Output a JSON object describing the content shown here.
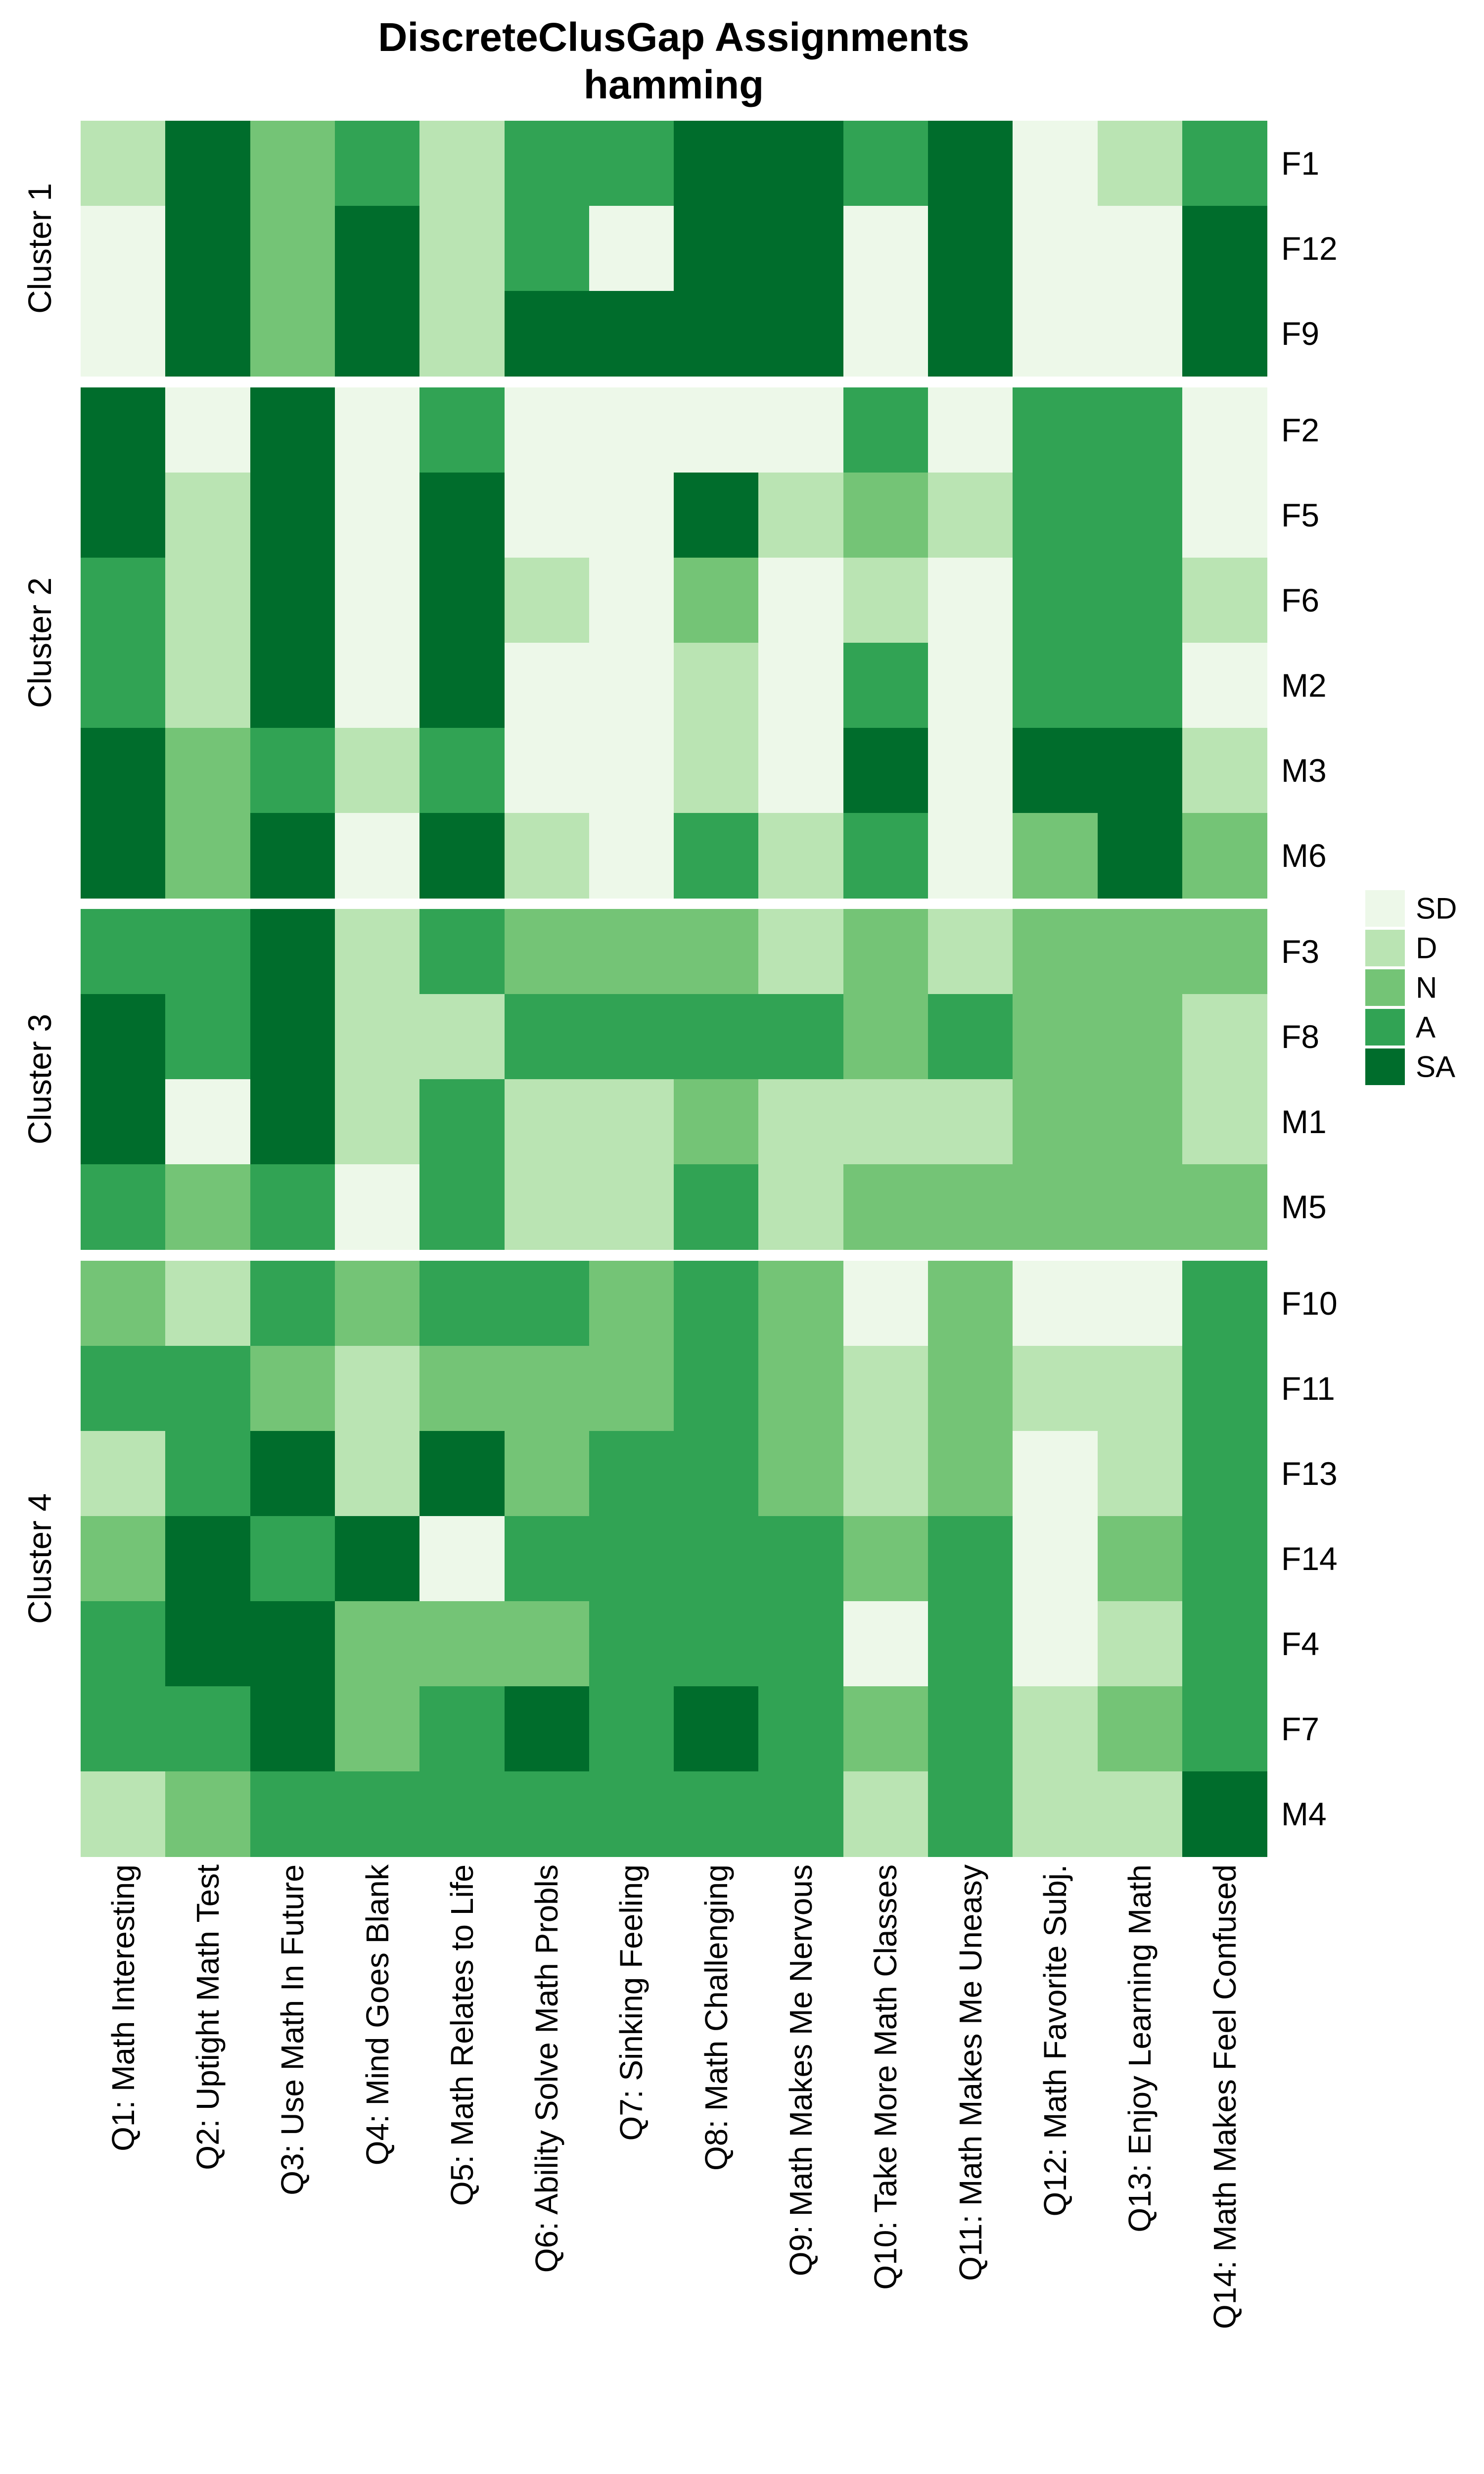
{
  "chart_data": {
    "type": "heatmap",
    "title": "DiscreteClusGap Assignments",
    "subtitle": "hamming",
    "value_scale": [
      "SD",
      "D",
      "N",
      "A",
      "SA"
    ],
    "legend": {
      "position": "right",
      "entries": [
        {
          "label": "SD",
          "color": "#edf8e9"
        },
        {
          "label": "D",
          "color": "#bae4b3"
        },
        {
          "label": "N",
          "color": "#74c476"
        },
        {
          "label": "A",
          "color": "#31a354"
        },
        {
          "label": "SA",
          "color": "#006d2c"
        }
      ]
    },
    "x_labels": [
      "Q1: Math Interesting",
      "Q2: Uptight Math Test",
      "Q3: Use Math In Future",
      "Q4: Mind Goes Blank",
      "Q5: Math Relates to Life",
      "Q6: Ability Solve Math Probls",
      "Q7: Sinking Feeling",
      "Q8: Math Challenging",
      "Q9: Math Makes Me Nervous",
      "Q10: Take More Math Classes",
      "Q11: Math Makes Me Uneasy",
      "Q12: Math Favorite Subj.",
      "Q13: Enjoy Learning Math",
      "Q14: Math Makes Feel Confused"
    ],
    "clusters": [
      {
        "name": "Cluster 1",
        "rows": [
          {
            "label": "F1",
            "values": [
              "D",
              "SA",
              "N",
              "A",
              "D",
              "A",
              "A",
              "SA",
              "SA",
              "A",
              "SA",
              "SD",
              "D",
              "A"
            ]
          },
          {
            "label": "F12",
            "values": [
              "SD",
              "SA",
              "N",
              "SA",
              "D",
              "A",
              "SD",
              "SA",
              "SA",
              "SD",
              "SA",
              "SD",
              "SD",
              "SA"
            ]
          },
          {
            "label": "F9",
            "values": [
              "SD",
              "SA",
              "N",
              "SA",
              "D",
              "SA",
              "SA",
              "SA",
              "SA",
              "SD",
              "SA",
              "SD",
              "SD",
              "SA"
            ]
          }
        ]
      },
      {
        "name": "Cluster 2",
        "rows": [
          {
            "label": "F2",
            "values": [
              "SA",
              "SD",
              "SA",
              "SD",
              "A",
              "SD",
              "SD",
              "SD",
              "SD",
              "A",
              "SD",
              "A",
              "A",
              "SD"
            ]
          },
          {
            "label": "F5",
            "values": [
              "SA",
              "D",
              "SA",
              "SD",
              "SA",
              "SD",
              "SD",
              "SA",
              "D",
              "N",
              "D",
              "A",
              "A",
              "SD"
            ]
          },
          {
            "label": "F6",
            "values": [
              "A",
              "D",
              "SA",
              "SD",
              "SA",
              "D",
              "SD",
              "N",
              "SD",
              "D",
              "SD",
              "A",
              "A",
              "D"
            ]
          },
          {
            "label": "M2",
            "values": [
              "A",
              "D",
              "SA",
              "SD",
              "SA",
              "SD",
              "SD",
              "D",
              "SD",
              "A",
              "SD",
              "A",
              "A",
              "SD"
            ]
          },
          {
            "label": "M3",
            "values": [
              "SA",
              "N",
              "A",
              "D",
              "A",
              "SD",
              "SD",
              "D",
              "SD",
              "SA",
              "SD",
              "SA",
              "SA",
              "D"
            ]
          },
          {
            "label": "M6",
            "values": [
              "SA",
              "N",
              "SA",
              "SD",
              "SA",
              "D",
              "SD",
              "A",
              "D",
              "A",
              "SD",
              "N",
              "SA",
              "N"
            ]
          }
        ]
      },
      {
        "name": "Cluster 3",
        "rows": [
          {
            "label": "F3",
            "values": [
              "A",
              "A",
              "SA",
              "D",
              "A",
              "N",
              "N",
              "N",
              "D",
              "N",
              "D",
              "N",
              "N",
              "N"
            ]
          },
          {
            "label": "F8",
            "values": [
              "SA",
              "A",
              "SA",
              "D",
              "D",
              "A",
              "A",
              "A",
              "A",
              "N",
              "A",
              "N",
              "N",
              "D"
            ]
          },
          {
            "label": "M1",
            "values": [
              "SA",
              "SD",
              "SA",
              "D",
              "A",
              "D",
              "D",
              "N",
              "D",
              "D",
              "D",
              "N",
              "N",
              "D"
            ]
          },
          {
            "label": "M5",
            "values": [
              "A",
              "N",
              "A",
              "SD",
              "A",
              "D",
              "D",
              "A",
              "D",
              "N",
              "N",
              "N",
              "N",
              "N"
            ]
          }
        ]
      },
      {
        "name": "Cluster 4",
        "rows": [
          {
            "label": "F10",
            "values": [
              "N",
              "D",
              "A",
              "N",
              "A",
              "A",
              "N",
              "A",
              "N",
              "SD",
              "N",
              "SD",
              "SD",
              "A"
            ]
          },
          {
            "label": "F11",
            "values": [
              "A",
              "A",
              "N",
              "D",
              "N",
              "N",
              "N",
              "A",
              "N",
              "D",
              "N",
              "D",
              "D",
              "A"
            ]
          },
          {
            "label": "F13",
            "values": [
              "D",
              "A",
              "SA",
              "D",
              "SA",
              "N",
              "A",
              "A",
              "N",
              "D",
              "N",
              "SD",
              "D",
              "A"
            ]
          },
          {
            "label": "F14",
            "values": [
              "N",
              "SA",
              "A",
              "SA",
              "SD",
              "A",
              "A",
              "A",
              "A",
              "N",
              "A",
              "SD",
              "N",
              "A"
            ]
          },
          {
            "label": "F4",
            "values": [
              "A",
              "SA",
              "SA",
              "N",
              "N",
              "N",
              "A",
              "A",
              "A",
              "SD",
              "A",
              "SD",
              "D",
              "A"
            ]
          },
          {
            "label": "F7",
            "values": [
              "A",
              "A",
              "SA",
              "N",
              "A",
              "SA",
              "A",
              "SA",
              "A",
              "N",
              "A",
              "D",
              "N",
              "A"
            ]
          },
          {
            "label": "M4",
            "values": [
              "D",
              "N",
              "A",
              "A",
              "A",
              "A",
              "A",
              "A",
              "A",
              "D",
              "A",
              "D",
              "D",
              "SA"
            ]
          }
        ]
      }
    ]
  }
}
